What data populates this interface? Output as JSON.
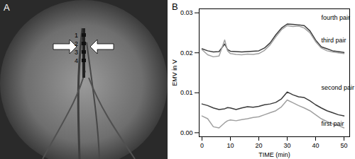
{
  "image_panel": {
    "label": "A",
    "markers": [
      "1",
      "2",
      "3",
      "4"
    ]
  },
  "chart_data": {
    "type": "line",
    "panel_label": "B",
    "x_label": "TIME (min)",
    "y_label": "EMV in V",
    "xlim": [
      -1,
      52
    ],
    "xticks": [
      0,
      10,
      20,
      30,
      40,
      50
    ],
    "ylim": [
      -0.001,
      0.031
    ],
    "yticks": [
      {
        "value": 0,
        "label": "0.00"
      },
      {
        "value": 0.01,
        "label": "0.01"
      },
      {
        "value": 0.02,
        "label": "0.02"
      },
      {
        "value": 0.03,
        "label": "0.03"
      }
    ],
    "x": [
      0,
      2,
      4,
      6,
      8,
      9,
      10,
      12,
      14,
      16,
      18,
      20,
      22,
      24,
      26,
      28,
      30,
      32,
      34,
      36,
      38,
      40,
      42,
      44,
      46,
      48,
      50
    ],
    "series": [
      {
        "name": "fourth pair",
        "color": "#3a3a3a",
        "values": [
          0.021,
          0.0205,
          0.0202,
          0.0203,
          0.0222,
          0.0208,
          0.0204,
          0.0203,
          0.0202,
          0.0203,
          0.0204,
          0.0205,
          0.0212,
          0.0225,
          0.0245,
          0.0262,
          0.0272,
          0.0271,
          0.027,
          0.0268,
          0.0255,
          0.0232,
          0.0215,
          0.021,
          0.0205,
          0.0203,
          0.0201
        ]
      },
      {
        "name": "third pair",
        "color": "#a0a0a0",
        "values": [
          0.0208,
          0.0195,
          0.019,
          0.0192,
          0.0232,
          0.0205,
          0.0198,
          0.0196,
          0.0195,
          0.0197,
          0.0196,
          0.0198,
          0.0206,
          0.022,
          0.024,
          0.0258,
          0.0268,
          0.0266,
          0.0267,
          0.0262,
          0.025,
          0.0228,
          0.0212,
          0.0205,
          0.0202,
          0.02,
          0.0198
        ]
      },
      {
        "name": "second pair",
        "color": "#3a3a3a",
        "values": [
          0.0072,
          0.0068,
          0.0062,
          0.0058,
          0.006,
          0.0063,
          0.0062,
          0.0058,
          0.0062,
          0.0065,
          0.0064,
          0.0066,
          0.007,
          0.0072,
          0.0076,
          0.0085,
          0.0102,
          0.0095,
          0.009,
          0.0088,
          0.008,
          0.007,
          0.0062,
          0.0055,
          0.005,
          0.0045,
          0.0042
        ]
      },
      {
        "name": "first pair",
        "color": "#a0a0a0",
        "values": [
          0.0042,
          0.0035,
          0.0015,
          0.0012,
          0.0025,
          0.003,
          0.0032,
          0.003,
          0.0033,
          0.0035,
          0.0038,
          0.004,
          0.0045,
          0.005,
          0.0055,
          0.0065,
          0.0082,
          0.0075,
          0.0068,
          0.0062,
          0.0055,
          0.0045,
          0.0035,
          0.0028,
          0.0022,
          0.0018,
          0.0012
        ]
      }
    ],
    "annotations": [
      {
        "text": "fourth pair",
        "x": 42,
        "y": 0.0288
      },
      {
        "text": "third pair",
        "x": 42,
        "y": 0.0232
      },
      {
        "text": "second pair",
        "x": 42,
        "y": 0.0112
      },
      {
        "text": "first pair",
        "x": 42,
        "y": 0.0022
      }
    ]
  }
}
